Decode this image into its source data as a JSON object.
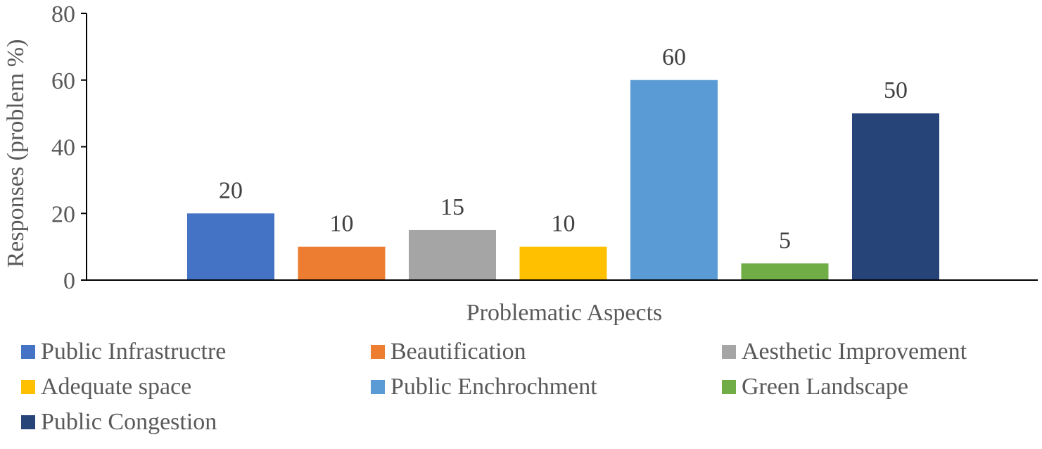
{
  "chart_data": {
    "type": "bar",
    "xlabel": "Problematic Aspects",
    "ylabel": "Responses (problem %)",
    "ylim": [
      0,
      80
    ],
    "yticks": [
      0,
      20,
      40,
      60,
      80
    ],
    "grid": false,
    "legend_position": "bottom",
    "series": [
      {
        "name": "Public Infrastructre",
        "value": 20,
        "color": "#4472C4"
      },
      {
        "name": "Beautification",
        "value": 10,
        "color": "#ED7D31"
      },
      {
        "name": "Aesthetic Improvement",
        "value": 15,
        "color": "#A5A5A5"
      },
      {
        "name": "Adequate space",
        "value": 10,
        "color": "#FFC000"
      },
      {
        "name": "Public Enchrochment",
        "value": 60,
        "color": "#5B9BD5"
      },
      {
        "name": "Green Landscape",
        "value": 5,
        "color": "#70AD47"
      },
      {
        "name": "Public Congestion",
        "value": 50,
        "color": "#264478"
      }
    ]
  }
}
